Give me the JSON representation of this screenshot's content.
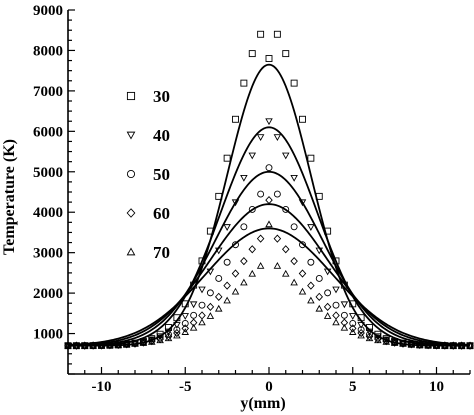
{
  "chart_data": {
    "type": "scatter",
    "title": "",
    "xlabel": "y(mm)",
    "ylabel": "Temperature (K)",
    "xlim": [
      -12,
      12
    ],
    "ylim": [
      0,
      9000
    ],
    "xticks": [
      -10,
      -5,
      0,
      5,
      10
    ],
    "yticks": [
      1000,
      2000,
      3000,
      4000,
      5000,
      6000,
      7000,
      8000,
      9000
    ],
    "grid": false,
    "legend_position": "left-center",
    "background": 700,
    "x_points": [
      -12,
      -11.5,
      -11,
      -10.5,
      -10,
      -9.5,
      -9,
      -8.5,
      -8,
      -7.5,
      -7,
      -6.5,
      -6,
      -5.5,
      -5,
      -4.5,
      -4,
      -3.5,
      -3,
      -2.5,
      -2,
      -1.5,
      -1,
      -0.5,
      0,
      0.5,
      1,
      1.5,
      2,
      2.5,
      3,
      3.5,
      4,
      4.5,
      5,
      5.5,
      6,
      6.5,
      7,
      7.5,
      8,
      8.5,
      9,
      9.5,
      10,
      10.5,
      11,
      11.5,
      12
    ],
    "series": [
      {
        "name": "30",
        "marker": "square",
        "peak_line": 7650,
        "peak_marker": 7800,
        "width": 2.5,
        "y": [
          700,
          700,
          701,
          702,
          705,
          710,
          719,
          735,
          761,
          804,
          874,
          983,
          1149,
          1392,
          1735,
          2198,
          2796,
          3533,
          4392,
          5336,
          6298,
          7192,
          7922,
          8400,
          7800,
          8400,
          7922,
          7192,
          6298,
          5336,
          4392,
          3533,
          2796,
          2198,
          1735,
          1392,
          1149,
          983,
          874,
          804,
          761,
          735,
          719,
          710,
          705,
          702,
          701,
          700,
          700
        ]
      },
      {
        "name": "40",
        "marker": "triangle-down",
        "peak_line": 6100,
        "peak_marker": 6250,
        "width": 2.9,
        "y": [
          700,
          700,
          701,
          703,
          706,
          712,
          722,
          737,
          761,
          798,
          853,
          934,
          1050,
          1213,
          1434,
          1724,
          2090,
          2535,
          3055,
          3634,
          4246,
          4851,
          5404,
          5858,
          6250,
          5858,
          5404,
          4851,
          4246,
          3634,
          3055,
          2535,
          2090,
          1724,
          1434,
          1213,
          1050,
          934,
          853,
          798,
          761,
          737,
          722,
          712,
          706,
          703,
          701,
          700,
          700
        ]
      },
      {
        "name": "50",
        "marker": "circle",
        "peak_line": 5000,
        "peak_marker": 5100,
        "width": 3.2,
        "y": [
          700,
          700,
          701,
          703,
          706,
          712,
          721,
          735,
          755,
          785,
          829,
          891,
          978,
          1095,
          1251,
          1451,
          1702,
          2006,
          2362,
          2763,
          3196,
          3640,
          4068,
          4449,
          5100,
          4449,
          4068,
          3640,
          3196,
          2763,
          2362,
          2006,
          1702,
          1451,
          1251,
          1095,
          978,
          891,
          829,
          785,
          755,
          735,
          721,
          712,
          706,
          703,
          701,
          700,
          700
        ]
      },
      {
        "name": "60",
        "marker": "diamond",
        "peak_line": 4200,
        "peak_marker": 4300,
        "width": 3.5,
        "y": [
          700,
          701,
          702,
          704,
          707,
          713,
          721,
          734,
          752,
          777,
          812,
          861,
          927,
          1014,
          1127,
          1270,
          1448,
          1660,
          1908,
          2185,
          2484,
          2790,
          3085,
          3347,
          4300,
          3347,
          3085,
          2790,
          2484,
          2185,
          1908,
          1660,
          1448,
          1270,
          1127,
          1014,
          927,
          861,
          812,
          777,
          752,
          734,
          721,
          713,
          707,
          704,
          702,
          701,
          700
        ]
      },
      {
        "name": "70",
        "marker": "triangle-up",
        "peak_line": 3600,
        "peak_marker": 3700,
        "width": 3.8,
        "y": [
          700,
          701,
          702,
          704,
          707,
          712,
          720,
          731,
          746,
          767,
          795,
          833,
          884,
          951,
          1036,
          1143,
          1275,
          1432,
          1614,
          1817,
          2036,
          2261,
          2478,
          2673,
          3700,
          2673,
          2478,
          2261,
          2036,
          1817,
          1614,
          1432,
          1275,
          1143,
          1036,
          951,
          884,
          833,
          795,
          767,
          746,
          731,
          720,
          712,
          707,
          704,
          702,
          701,
          700
        ]
      }
    ]
  }
}
